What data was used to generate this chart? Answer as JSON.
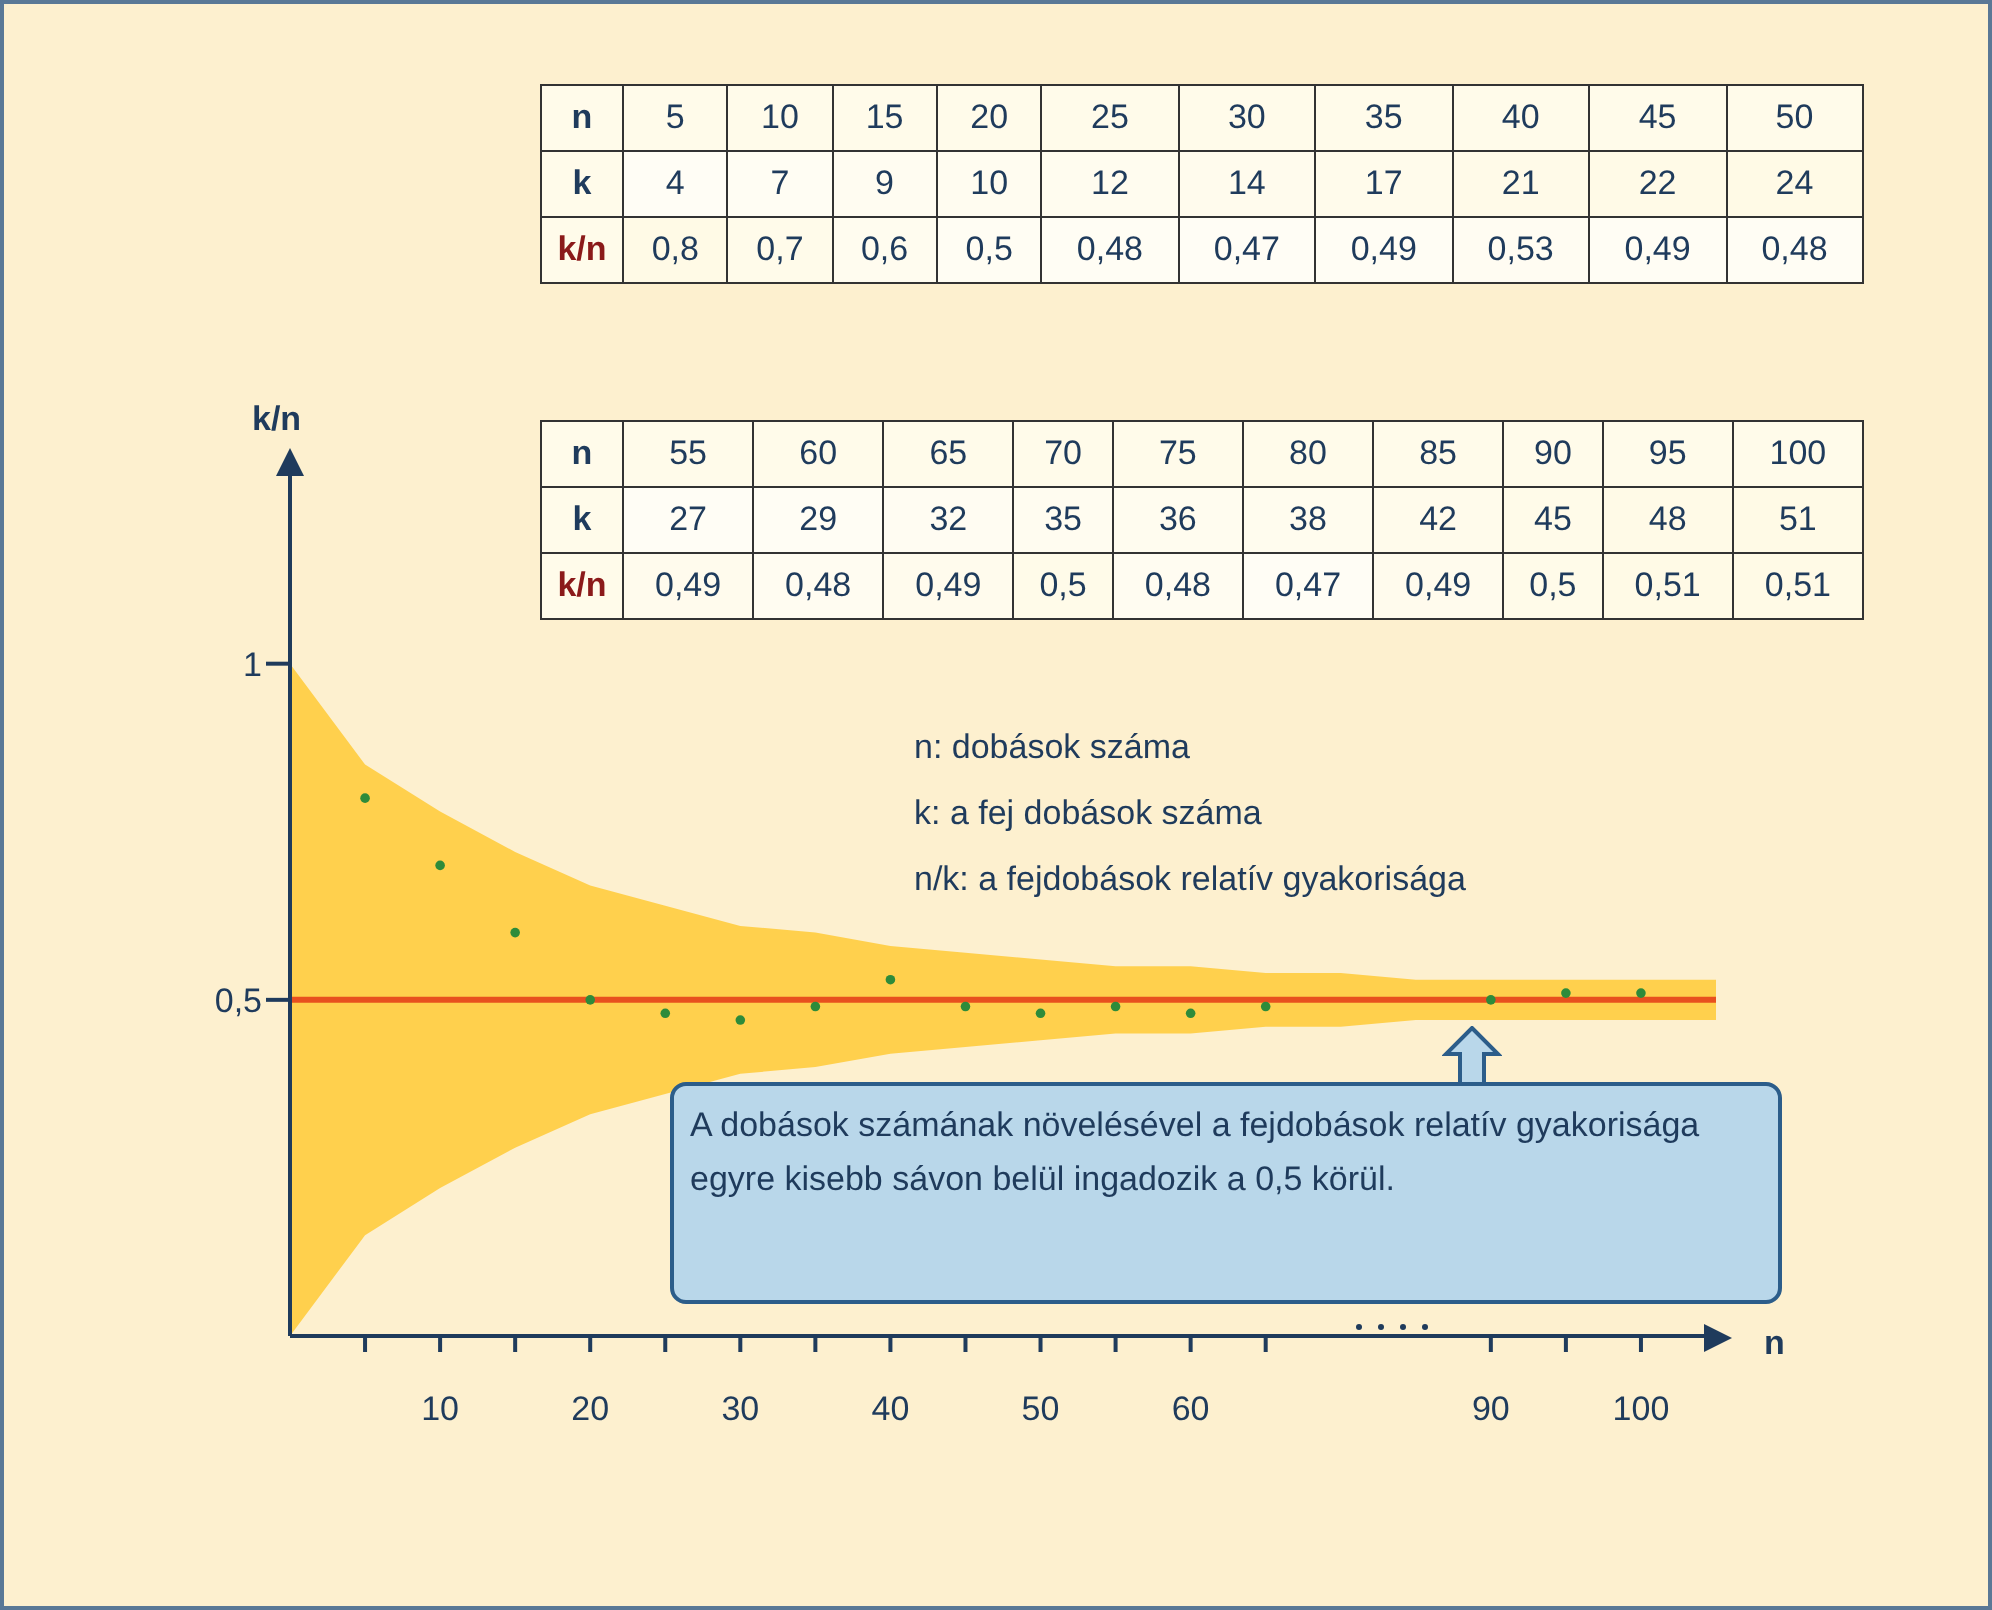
{
  "chart_data": [
    {
      "type": "heatmap",
      "xlabel": "n",
      "categories": [
        "5",
        "10",
        "15",
        "20",
        "25",
        "30",
        "35",
        "40",
        "45",
        "50"
      ],
      "y_categories": [
        "k",
        "k/n"
      ],
      "cells": [
        [
          4,
          7,
          9,
          10,
          12,
          14,
          17,
          21,
          22,
          24
        ],
        [
          0.8,
          0.7,
          0.6,
          0.5,
          0.48,
          0.47,
          0.49,
          0.53,
          0.49,
          0.48
        ]
      ],
      "cell_labels": [
        [
          "4",
          "7",
          "9",
          "10",
          "12",
          "14",
          "17",
          "21",
          "22",
          "24"
        ],
        [
          "0,8",
          "0,7",
          "0,6",
          "0,5",
          "0,48",
          "0,47",
          "0,49",
          "0,53",
          "0,49",
          "0,48"
        ]
      ]
    },
    {
      "type": "heatmap",
      "xlabel": "n",
      "categories": [
        "55",
        "60",
        "65",
        "70",
        "75",
        "80",
        "85",
        "90",
        "95",
        "100"
      ],
      "y_categories": [
        "k",
        "k/n"
      ],
      "cells": [
        [
          27,
          29,
          32,
          35,
          36,
          38,
          42,
          45,
          48,
          51
        ],
        [
          0.49,
          0.48,
          0.49,
          0.5,
          0.48,
          0.47,
          0.49,
          0.5,
          0.51,
          0.51
        ]
      ],
      "cell_labels": [
        [
          "27",
          "29",
          "32",
          "35",
          "36",
          "38",
          "42",
          "45",
          "48",
          "51"
        ],
        [
          "0,49",
          "0,48",
          "0,49",
          "0,5",
          "0,48",
          "0,47",
          "0,49",
          "0,5",
          "0,51",
          "0,51"
        ]
      ]
    },
    {
      "type": "scatter",
      "xlabel": "n",
      "ylabel": "k/n",
      "categories": [
        null,
        null,
        "10",
        null,
        "20",
        null,
        "30",
        null,
        "40",
        null,
        "50",
        null,
        "60",
        null,
        null,
        null,
        "90",
        null,
        "100",
        null
      ],
      "ylim": [
        0,
        1.3
      ],
      "yticks": [
        {
          "value": 0.5,
          "label": "0,5"
        },
        {
          "value": 1,
          "label": "1"
        }
      ],
      "marker": "circle",
      "series": [
        {
          "type": "line",
          "marker": "none",
          "color": "#e8501e",
          "line_style": "solid",
          "values": [
            0.5,
            0.5,
            0.5,
            0.5,
            0.5,
            0.5,
            0.5,
            0.5,
            0.5,
            0.5,
            0.5,
            0.5,
            0.5,
            0.5,
            0.5,
            0.5,
            0.5,
            0.5,
            0.5,
            0.5
          ],
          "upper": [
            1,
            0.85,
            0.78,
            0.72,
            0.67,
            0.64,
            0.61,
            0.6,
            0.58,
            0.57,
            0.56,
            0.55,
            0.55,
            0.54,
            0.54,
            0.53,
            0.53,
            0.53,
            0.53,
            0.53
          ],
          "lower": [
            0,
            0.15,
            0.22,
            0.28,
            0.33,
            0.36,
            0.39,
            0.4,
            0.42,
            0.43,
            0.44,
            0.45,
            0.45,
            0.46,
            0.46,
            0.47,
            0.47,
            0.47,
            0.47,
            0.47
          ]
        },
        {
          "type": "scatter",
          "color": "#2e8b3a",
          "values": [
            null,
            0.8,
            0.7,
            0.6,
            0.5,
            0.48,
            0.47,
            0.49,
            0.53,
            0.49,
            0.48,
            0.49,
            0.48,
            0.49,
            null,
            null,
            0.5,
            0.51,
            0.51,
            null
          ]
        }
      ],
      "annotations": [
        "n: dobások száma",
        "k: a fej dobások száma",
        "n/k: a fejdobások relatív gyakorisága",
        {
          "text": "A dobások számának növelésével a fejdobások relatív gyakorisága egyre kisebb sávon belül ingadozik a 0,5 körül.",
          "y": 0.46
        }
      ]
    }
  ]
}
